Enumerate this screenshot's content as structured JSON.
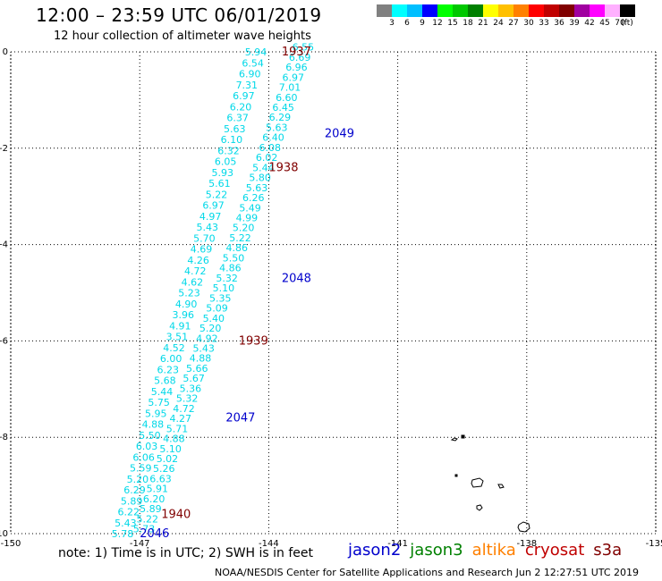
{
  "title": "12:00 – 23:59 UTC 06/01/2019",
  "subtitle": "12 hour collection of altimeter wave heights",
  "note": "note: 1) Time is in UTC; 2) SWH is in feet",
  "credit": "NOAA/NESDIS Center for Satellite Applications and Research   Jun  2 12:27:51 UTC 2019",
  "legend": {
    "colors": [
      "#808080",
      "#00ffff",
      "#00bfff",
      "#0000ff",
      "#00ff00",
      "#00c800",
      "#008000",
      "#ffff00",
      "#ffc000",
      "#ff8000",
      "#ff0000",
      "#c00000",
      "#800000",
      "#a000a0",
      "#ff00ff",
      "#ffb0ff",
      "#000000"
    ],
    "labels": [
      "3",
      "6",
      "9",
      "12",
      "15",
      "18",
      "21",
      "24",
      "27",
      "30",
      "33",
      "36",
      "39",
      "42",
      "45",
      "70",
      "(ft)"
    ]
  },
  "axes": {
    "lon_ticks": [
      "-150",
      "-147",
      "-144",
      "-141",
      "-138",
      "-135"
    ],
    "lat_ticks": [
      "0",
      "-2",
      "-4",
      "-6",
      "-8",
      "-10"
    ]
  },
  "satellites": [
    {
      "name": "jason2",
      "color": "#0000cc"
    },
    {
      "name": "jason3",
      "color": "#008000"
    },
    {
      "name": "altika",
      "color": "#ff8000"
    },
    {
      "name": "cryosat",
      "color": "#c00000"
    },
    {
      "name": "s3a",
      "color": "#800000"
    }
  ],
  "track_times": [
    {
      "label": "1937",
      "color": "#800000",
      "lon": -143.7,
      "lat": 0.0
    },
    {
      "label": "2049",
      "color": "#0000cc",
      "lon": -142.7,
      "lat": -1.7
    },
    {
      "label": "1938",
      "color": "#800000",
      "lon": -144.0,
      "lat": -2.4
    },
    {
      "label": "2048",
      "color": "#0000cc",
      "lon": -143.7,
      "lat": -4.7
    },
    {
      "label": "1939",
      "color": "#800000",
      "lon": -144.7,
      "lat": -6.0
    },
    {
      "label": "2047",
      "color": "#0000cc",
      "lon": -145.0,
      "lat": -7.6
    },
    {
      "label": "1940",
      "color": "#800000",
      "lon": -146.5,
      "lat": -9.6
    },
    {
      "label": "2046",
      "color": "#0000cc",
      "lon": -147.0,
      "lat": -10.0
    }
  ],
  "wave_tracks": {
    "west": {
      "start": {
        "lon": -144.3,
        "lat": 0.0
      },
      "end": {
        "lon": -147.4,
        "lat": -10.0
      },
      "values": [
        "5.94",
        "6.54",
        "6.90",
        "7.31",
        "6.97",
        "6.20",
        "6.37",
        "5.63",
        "6.10",
        "6.32",
        "6.05",
        "5.93",
        "5.61",
        "5.22",
        "6.97",
        "4.97",
        "5.43",
        "5.70",
        "4.69",
        "4.26",
        "4.72",
        "4.62",
        "5.23",
        "4.90",
        "3.96",
        "4.91",
        "3.51",
        "4.52",
        "6.00",
        "6.23",
        "5.68",
        "5.44",
        "5.75",
        "5.95",
        "4.88",
        "5.50",
        "6.03",
        "6.06",
        "5.59",
        "5.20",
        "6.29",
        "5.89",
        "6.22",
        "5.43",
        "5.78"
      ]
    },
    "east": {
      "start": {
        "lon": -143.2,
        "lat": 0.1
      },
      "end": {
        "lon": -146.9,
        "lat": -9.9
      },
      "values": [
        "6.55",
        "6.69",
        "6.96",
        "6.97",
        "7.01",
        "6.60",
        "6.45",
        "6.29",
        "5.63",
        "6.40",
        "6.08",
        "6.02",
        "5.44",
        "5.80",
        "5.63",
        "6.26",
        "5.49",
        "4.99",
        "5.20",
        "5.22",
        "4.86",
        "5.50",
        "4.86",
        "5.32",
        "5.10",
        "5.35",
        "5.09",
        "5.40",
        "5.20",
        "4.92",
        "5.43",
        "4.88",
        "5.66",
        "5.67",
        "5.36",
        "5.32",
        "4.72",
        "4.27",
        "5.71",
        "4.88",
        "5.10",
        "5.02",
        "5.26",
        "6.63",
        "5.91",
        "6.20",
        "5.89",
        "5.22",
        "5.73"
      ]
    }
  }
}
